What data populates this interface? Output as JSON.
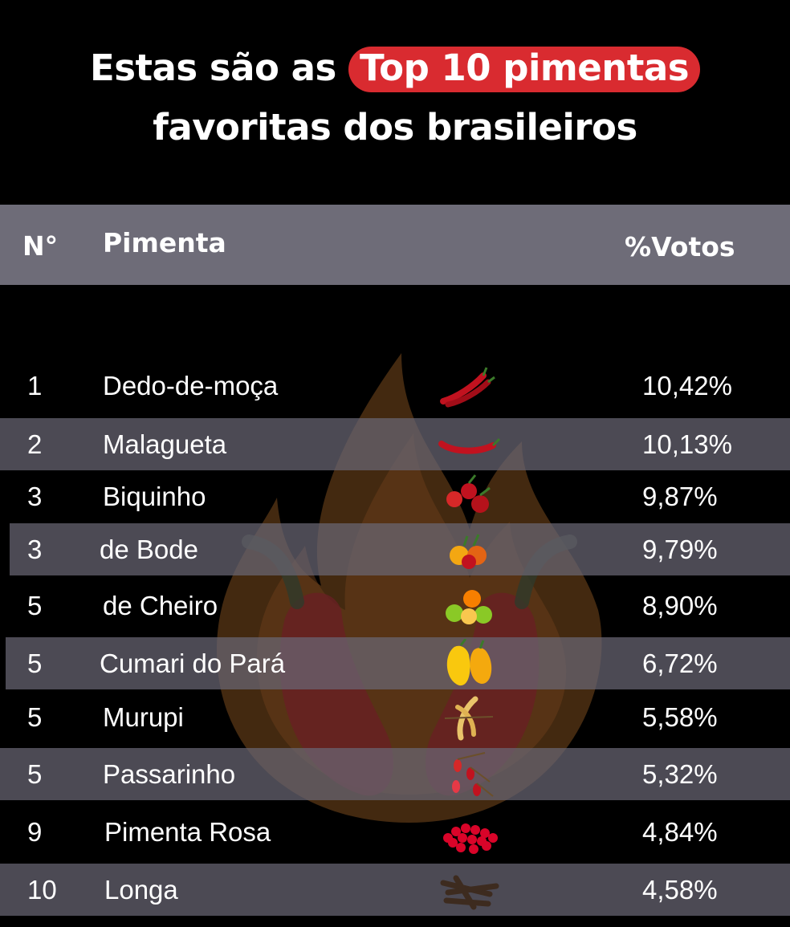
{
  "title": {
    "line1_prefix": "Estas são as",
    "highlight": "Top 10 pimentas",
    "line2": "favoritas dos brasileiros"
  },
  "chart_data": {
    "type": "table",
    "columns": [
      "N°",
      "Pimenta",
      "%Votos"
    ],
    "rows": [
      {
        "rank": "1",
        "name": "Dedo-de-moça",
        "votes": "10,42%",
        "value": 10.42,
        "icon": "red-chili-pepper-icon"
      },
      {
        "rank": "2",
        "name": "Malagueta",
        "votes": "10,13%",
        "value": 10.13,
        "icon": "long-red-pepper-icon"
      },
      {
        "rank": "3",
        "name": "Biquinho",
        "votes": "9,87%",
        "value": 9.87,
        "icon": "biquinho-pepper-icon"
      },
      {
        "rank": "3",
        "name": "de Bode",
        "votes": "9,79%",
        "value": 9.79,
        "icon": "bode-pepper-icon"
      },
      {
        "rank": "5",
        "name": "de Cheiro",
        "votes": "8,90%",
        "value": 8.9,
        "icon": "cheiro-pepper-icon"
      },
      {
        "rank": "5",
        "name": "Cumari do Pará",
        "votes": "6,72%",
        "value": 6.72,
        "icon": "yellow-pepper-icon"
      },
      {
        "rank": "5",
        "name": "Murupi",
        "votes": "5,58%",
        "value": 5.58,
        "icon": "murupi-pepper-icon"
      },
      {
        "rank": "5",
        "name": "Passarinho",
        "votes": "5,32%",
        "value": 5.32,
        "icon": "small-red-peppers-icon"
      },
      {
        "rank": "9",
        "name": "Pimenta Rosa",
        "votes": "4,84%",
        "value": 4.84,
        "icon": "pink-peppercorns-icon"
      },
      {
        "rank": "10",
        "name": "Longa",
        "votes": "4,58%",
        "value": 4.58,
        "icon": "long-pepper-icon"
      }
    ]
  },
  "colors": {
    "background": "#000000",
    "highlight": "#d92b30",
    "header": "#6e6c78",
    "row_shade": "#545260"
  }
}
